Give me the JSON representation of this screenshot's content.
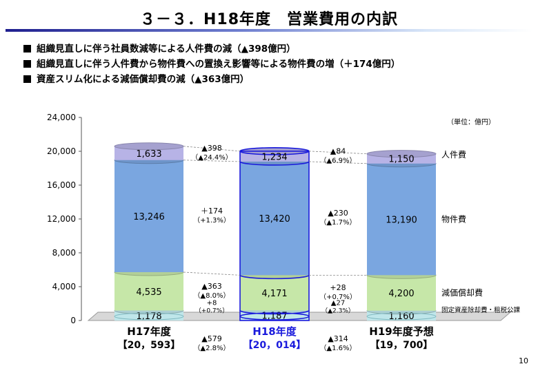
{
  "title": "３－３．H18年度　営業費用の内訳",
  "bullets": [
    "組織見直しに伴う社員数減等による人件費の減（▲398億円）",
    "組織見直しに伴う人件費から物件費への置換え影響等による物件費の増（＋174億円）",
    "資産スリム化による減価償却費の減（▲363億円）"
  ],
  "page_number": "10",
  "chart_data": {
    "type": "bar",
    "stacked": true,
    "unit_label": "（単位：億円）",
    "ylim": [
      0,
      24000
    ],
    "yticks": [
      "0",
      "4,000",
      "8,000",
      "12,000",
      "16,000",
      "20,000",
      "24,000"
    ],
    "categories": [
      "H17年度",
      "H18年度",
      "H19年度予想"
    ],
    "category_totals": [
      "【20，593】",
      "【20，014】",
      "【19，700】"
    ],
    "highlight_category": "H18年度",
    "series": [
      {
        "name": "固定資産除却費・租税公課",
        "values": [
          1178,
          1187,
          1160
        ],
        "labels": [
          "1,178",
          "1,187",
          "1,160"
        ],
        "color": "#bfe6ea"
      },
      {
        "name": "減価償却費",
        "values": [
          4535,
          4171,
          4200
        ],
        "labels": [
          "4,535",
          "4,171",
          "4,200"
        ],
        "color": "#c6e7a8"
      },
      {
        "name": "物件費",
        "values": [
          13246,
          13420,
          13190
        ],
        "labels": [
          "13,246",
          "13,420",
          "13,190"
        ],
        "color": "#7aa6e0"
      },
      {
        "name": "人件費",
        "values": [
          1633,
          1234,
          1150
        ],
        "labels": [
          "1,633",
          "1,234",
          "1,150"
        ],
        "color": "#b7b3e6"
      }
    ],
    "changes": [
      {
        "between": [
          "H17年度",
          "H18年度"
        ],
        "series": "人件費",
        "amount": "▲398",
        "pct": "（▲24.4%）"
      },
      {
        "between": [
          "H17年度",
          "H18年度"
        ],
        "series": "物件費",
        "amount": "＋174",
        "pct": "（+1.3%）"
      },
      {
        "between": [
          "H17年度",
          "H18年度"
        ],
        "series": "減価償却費",
        "amount": "▲363",
        "pct": "（▲8.0%）"
      },
      {
        "between": [
          "H17年度",
          "H18年度"
        ],
        "series": "固定資産除却費・租税公課",
        "amount": "+8",
        "pct": "（+0.7%）"
      },
      {
        "between": [
          "H17年度",
          "H18年度"
        ],
        "series": "total",
        "amount": "▲579",
        "pct": "（▲2.8%）"
      },
      {
        "between": [
          "H18年度",
          "H19年度予想"
        ],
        "series": "人件費",
        "amount": "▲84",
        "pct": "（▲6.9%）"
      },
      {
        "between": [
          "H18年度",
          "H19年度予想"
        ],
        "series": "物件費",
        "amount": "▲230",
        "pct": "（▲1.7%）"
      },
      {
        "between": [
          "H18年度",
          "H19年度予想"
        ],
        "series": "減価償却費",
        "amount": "+28",
        "pct": "（+0.7%）"
      },
      {
        "between": [
          "H18年度",
          "H19年度予想"
        ],
        "series": "固定資産除却費・租税公課",
        "amount": "▲27",
        "pct": "（▲2.3%）"
      },
      {
        "between": [
          "H18年度",
          "H19年度予想"
        ],
        "series": "total",
        "amount": "▲314",
        "pct": "（▲1.6%）"
      }
    ]
  }
}
